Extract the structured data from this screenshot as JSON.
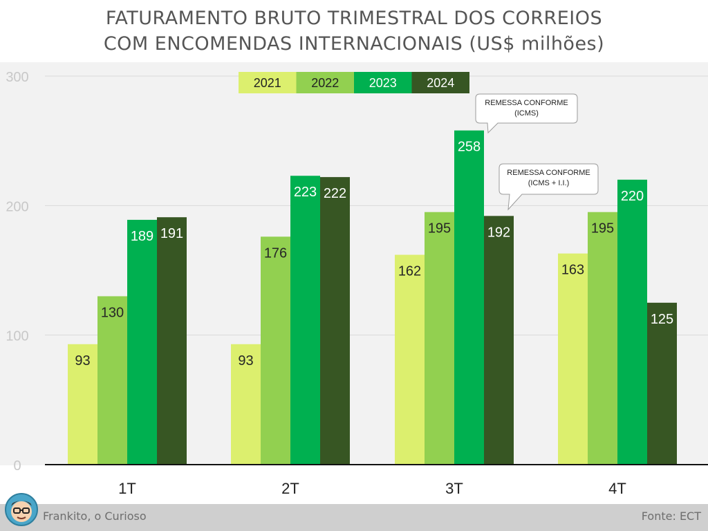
{
  "chart_data": {
    "type": "bar",
    "title_lines": [
      "FATURAMENTO BRUTO TRIMESTRAL DOS CORREIOS",
      "COM ENCOMENDAS INTERNACIONAIS (US$ milhões)"
    ],
    "categories": [
      "1T",
      "2T",
      "3T",
      "4T"
    ],
    "series": [
      {
        "name": "2021",
        "color": "#dcef6e",
        "values": [
          93,
          93,
          162,
          163
        ]
      },
      {
        "name": "2022",
        "color": "#92d050",
        "values": [
          130,
          176,
          195,
          195
        ]
      },
      {
        "name": "2023",
        "color": "#00b050",
        "values": [
          189,
          223,
          258,
          220
        ]
      },
      {
        "name": "2024",
        "color": "#375623",
        "values": [
          191,
          222,
          192,
          125
        ]
      }
    ],
    "ylim": [
      0,
      300
    ],
    "yticks": [
      0,
      100,
      200,
      300
    ],
    "grid": true,
    "legend_position": "top-center",
    "annotations": [
      {
        "lines": [
          "REMESSA CONFORME",
          "(ICMS)"
        ],
        "points_to": {
          "category": "3T",
          "series": "2023"
        }
      },
      {
        "lines": [
          "REMESSA CONFORME",
          "(ICMS + I.I.)"
        ],
        "points_to": {
          "category": "3T",
          "series": "2024"
        }
      }
    ]
  },
  "footer": {
    "left_text": "Frankito, o Curioso",
    "right_text": "Fonte: ECT",
    "avatar_icon": "cartoon-avatar-icon",
    "background": "#cfcfcf"
  }
}
